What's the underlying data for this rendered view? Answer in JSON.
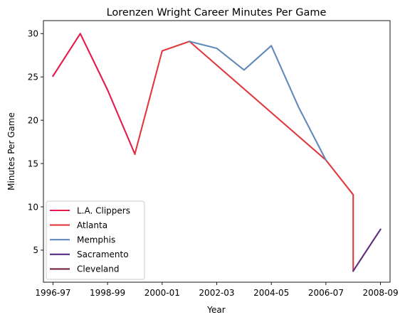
{
  "chart_data": {
    "type": "line",
    "title": "Lorenzen Wright Career Minutes Per Game",
    "xlabel": "Year",
    "ylabel": "Minutes Per Game",
    "xlim": [
      -0.35,
      12.35
    ],
    "ylim": [
      1.3,
      31.5
    ],
    "x_ticks": [
      {
        "x": 0,
        "label": "1996-97"
      },
      {
        "x": 2,
        "label": "1998-99"
      },
      {
        "x": 4,
        "label": "2000-01"
      },
      {
        "x": 6,
        "label": "2002-03"
      },
      {
        "x": 8,
        "label": "2004-05"
      },
      {
        "x": 10,
        "label": "2006-07"
      },
      {
        "x": 12,
        "label": "2008-09"
      }
    ],
    "y_ticks": [
      5,
      10,
      15,
      20,
      25,
      30
    ],
    "grid": false,
    "legend_position": "lower-left",
    "series": [
      {
        "name": "L.A. Clippers",
        "color": "#e41a4f",
        "points": [
          [
            0,
            25.1
          ],
          [
            1,
            30.0
          ],
          [
            2,
            23.5
          ],
          [
            3,
            16.1
          ]
        ]
      },
      {
        "name": "Atlanta",
        "color": "#e03a3e",
        "points": [
          [
            3,
            16.1
          ],
          [
            4,
            28.0
          ],
          [
            5,
            29.1
          ],
          [
            10,
            15.4
          ],
          [
            11,
            11.4
          ],
          [
            11,
            2.6
          ]
        ]
      },
      {
        "name": "Memphis",
        "color": "#6189b9",
        "points": [
          [
            5,
            29.1
          ],
          [
            6,
            28.3
          ],
          [
            7,
            25.8
          ],
          [
            8,
            28.6
          ],
          [
            9,
            21.5
          ],
          [
            10,
            15.4
          ]
        ]
      },
      {
        "name": "Sacramento",
        "color": "#5a2d81",
        "points": [
          [
            11,
            2.6
          ],
          [
            12,
            7.4
          ]
        ]
      },
      {
        "name": "Cleveland",
        "color": "#6f263d",
        "points": []
      }
    ]
  }
}
